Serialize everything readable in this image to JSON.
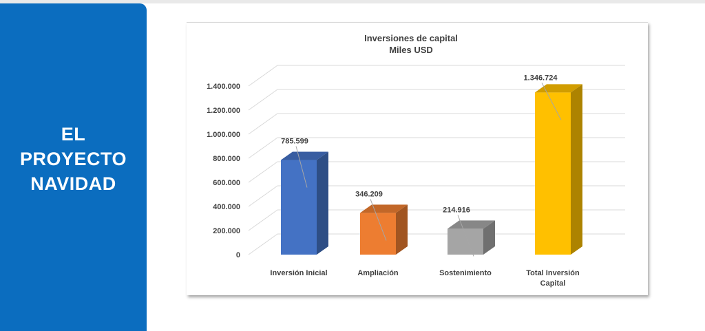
{
  "side_panel": {
    "title_lines": [
      "EL",
      "PROYECTO",
      "NAVIDAD"
    ],
    "background": "#0b6dbf"
  },
  "chart_data": {
    "type": "bar",
    "title": "Inversiones de capital",
    "subtitle": "Miles USD",
    "categories": [
      [
        "Inversión Inicial"
      ],
      [
        "Ampliación"
      ],
      [
        "Sostenimiento"
      ],
      [
        "Total Inversión",
        "Capital"
      ]
    ],
    "values": [
      785599,
      346209,
      214916,
      1346724
    ],
    "data_labels": [
      "785.599",
      "346.209",
      "214.916",
      "1.346.724"
    ],
    "colors": [
      "#4472c4",
      "#ed7d31",
      "#a5a5a5",
      "#ffc000"
    ],
    "y_ticks": [
      0,
      200000,
      400000,
      600000,
      800000,
      1000000,
      1200000,
      1400000
    ],
    "y_tick_labels": [
      "0",
      "200.000",
      "400.000",
      "600.000",
      "800.000",
      "1.000.000",
      "1.200.000",
      "1.400.000"
    ],
    "ylim": [
      0,
      1400000
    ],
    "grid": true,
    "three_d": true,
    "legend": "none"
  }
}
